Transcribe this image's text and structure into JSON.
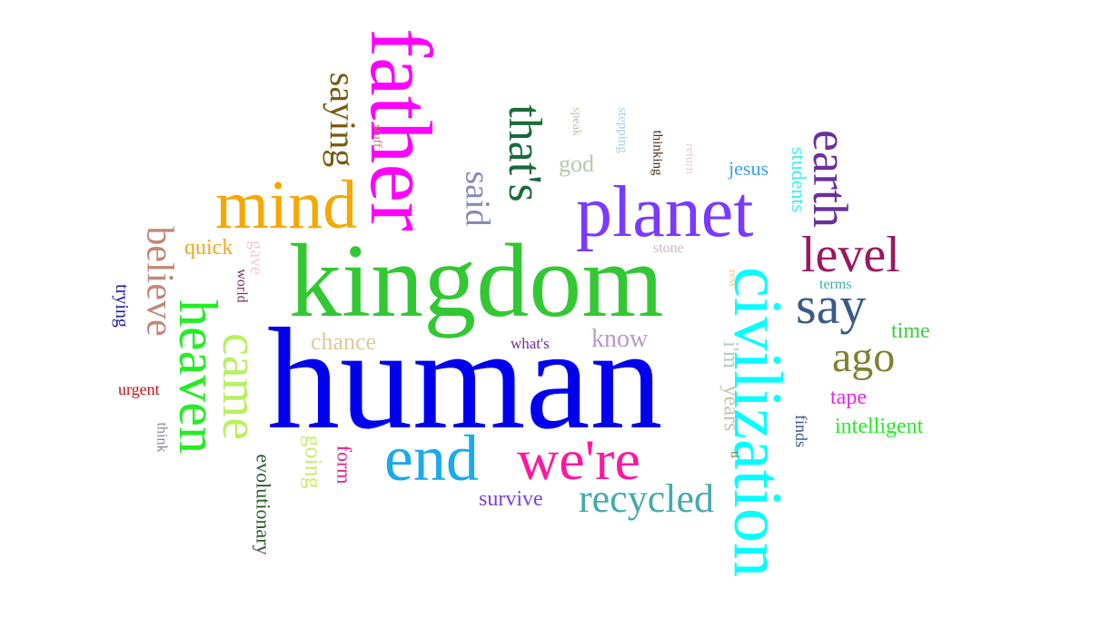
{
  "words": [
    {
      "text": "human",
      "color": "#0000ee"
    },
    {
      "text": "kingdom",
      "color": "#33c833"
    },
    {
      "text": "father",
      "color": "#ff00ff"
    },
    {
      "text": "civilization",
      "color": "#00ffff"
    },
    {
      "text": "planet",
      "color": "#7a3aff"
    },
    {
      "text": "mind",
      "color": "#f5a800"
    },
    {
      "text": "end",
      "color": "#1aaaee"
    },
    {
      "text": "we're",
      "color": "#ff18a0"
    },
    {
      "text": "heaven",
      "color": "#22ee22"
    },
    {
      "text": "came",
      "color": "#b8f060"
    },
    {
      "text": "recycled",
      "color": "#44aaaa"
    },
    {
      "text": "level",
      "color": "#9a1860"
    },
    {
      "text": "say",
      "color": "#3a5a88"
    },
    {
      "text": "earth",
      "color": "#6a309a"
    },
    {
      "text": "that's",
      "color": "#1a6a3a"
    },
    {
      "text": "ago",
      "color": "#808030"
    },
    {
      "text": "believe",
      "color": "#c08878"
    },
    {
      "text": "saying",
      "color": "#7a5a10"
    },
    {
      "text": "said",
      "color": "#8888bb"
    },
    {
      "text": "know",
      "color": "#b898c8"
    },
    {
      "text": "chance",
      "color": "#e0c898"
    },
    {
      "text": "survive",
      "color": "#7a40e0"
    },
    {
      "text": "evolutionary",
      "color": "#2a5a2a"
    },
    {
      "text": "going",
      "color": "#c8ee70"
    },
    {
      "text": "form",
      "color": "#ee1a8a"
    },
    {
      "text": "quick",
      "color": "#f0a820"
    },
    {
      "text": "jesus",
      "color": "#3aa0ee"
    },
    {
      "text": "students",
      "color": "#40eeee"
    },
    {
      "text": "time",
      "color": "#40cc40"
    },
    {
      "text": "intelligent",
      "color": "#22ee22"
    },
    {
      "text": "tape",
      "color": "#ee22ee"
    },
    {
      "text": "god",
      "color": "#b8c8a8"
    },
    {
      "text": "years",
      "color": "#c8c0b0"
    },
    {
      "text": "i'm",
      "color": "#b8c8c0"
    },
    {
      "text": "urgent",
      "color": "#cc1010"
    },
    {
      "text": "trying",
      "color": "#1a1aaa"
    },
    {
      "text": "gave",
      "color": "#f8c8d0"
    },
    {
      "text": "world",
      "color": "#7a2a6a"
    },
    {
      "text": "think",
      "color": "#8a80a8"
    },
    {
      "text": "what's",
      "color": "#7a2a9a"
    },
    {
      "text": "stone",
      "color": "#c8b8c8"
    },
    {
      "text": "terms",
      "color": "#44aaaa"
    },
    {
      "text": "finds",
      "color": "#3a5a88"
    },
    {
      "text": "rest",
      "color": "#e8c898"
    },
    {
      "text": "ti",
      "color": "#7a7a30"
    },
    {
      "text": "stuff",
      "color": "#c07868"
    },
    {
      "text": "speak",
      "color": "#b8c8a8"
    },
    {
      "text": "stepping",
      "color": "#a8d0e8"
    },
    {
      "text": "thinking",
      "color": "#4a3010"
    },
    {
      "text": "return",
      "color": "#f8c8c8"
    }
  ]
}
